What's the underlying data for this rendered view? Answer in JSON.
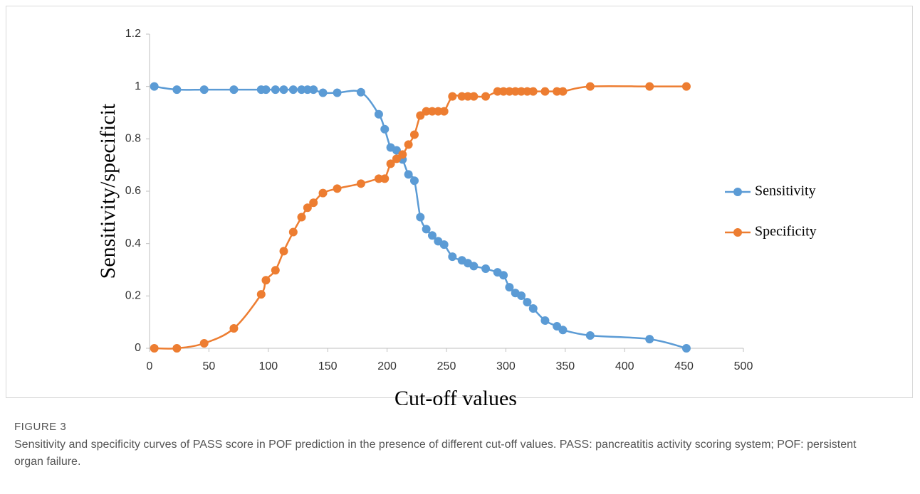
{
  "chart_data": {
    "type": "line",
    "x_label": "Cut-off values",
    "y_label": "Sensitivity/specificit",
    "x": [
      4,
      23,
      46,
      71,
      94,
      98,
      106,
      113,
      121,
      128,
      133,
      138,
      146,
      158,
      178,
      193,
      198,
      203,
      208,
      213,
      218,
      223,
      228,
      233,
      238,
      243,
      248,
      255,
      263,
      268,
      273,
      283,
      293,
      298,
      303,
      308,
      313,
      318,
      323,
      333,
      343,
      348,
      371,
      421,
      452
    ],
    "series": [
      {
        "name": "Sensitivity",
        "color": "#5b9bd5",
        "values": [
          1.0,
          0.988,
          0.988,
          0.988,
          0.988,
          0.988,
          0.988,
          0.988,
          0.988,
          0.988,
          0.988,
          0.988,
          0.976,
          0.976,
          0.978,
          0.894,
          0.837,
          0.767,
          0.756,
          0.721,
          0.664,
          0.64,
          0.501,
          0.455,
          0.431,
          0.409,
          0.396,
          0.35,
          0.336,
          0.325,
          0.314,
          0.304,
          0.29,
          0.279,
          0.233,
          0.211,
          0.201,
          0.176,
          0.152,
          0.106,
          0.084,
          0.07,
          0.049,
          0.035,
          0
        ]
      },
      {
        "name": "Specificity",
        "color": "#ed7d31",
        "values": [
          0,
          0,
          0.019,
          0.076,
          0.206,
          0.26,
          0.298,
          0.371,
          0.444,
          0.501,
          0.537,
          0.556,
          0.593,
          0.61,
          0.629,
          0.648,
          0.648,
          0.705,
          0.724,
          0.74,
          0.778,
          0.816,
          0.889,
          0.905,
          0.905,
          0.905,
          0.905,
          0.962,
          0.962,
          0.962,
          0.962,
          0.962,
          0.981,
          0.981,
          0.981,
          0.981,
          0.981,
          0.981,
          0.981,
          0.981,
          0.981,
          0.981,
          1.0,
          1.0,
          1.0
        ]
      }
    ],
    "xlim": [
      0,
      500
    ],
    "xticks": [
      0,
      50,
      100,
      150,
      200,
      250,
      300,
      350,
      400,
      450,
      500
    ],
    "ylim": [
      0,
      1.2
    ],
    "yticks": [
      0,
      0.2,
      0.4,
      0.6,
      0.8,
      1,
      1.2
    ],
    "grid": false,
    "legend": "right",
    "smooth": true
  },
  "caption": {
    "label": "FIGURE 3",
    "text": "Sensitivity and specificity curves of PASS score in POF prediction in the presence of different cut-off values. PASS: pancreatitis activity scoring system; POF: persistent organ failure."
  }
}
